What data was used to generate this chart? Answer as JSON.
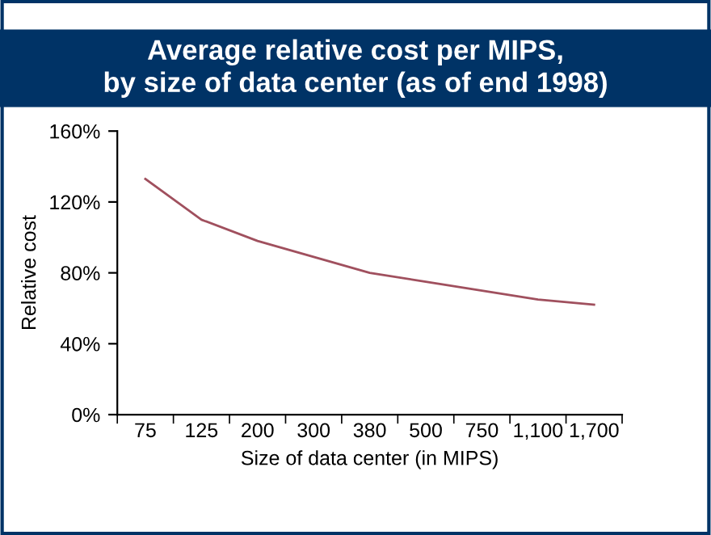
{
  "chart_data": {
    "type": "line",
    "title": "Average relative cost per MIPS,\nby size of data center (as of end 1998)",
    "xlabel": "Size of data center (in MIPS)",
    "ylabel": "Relative cost",
    "categories": [
      "75",
      "125",
      "200",
      "300",
      "380",
      "500",
      "750",
      "1,100",
      "1,700"
    ],
    "series": [
      {
        "color": "#a0505e",
        "values": [
          133,
          110,
          98,
          89,
          80,
          75,
          70,
          65,
          62
        ]
      }
    ],
    "ylim": [
      0,
      160
    ],
    "yticks": [
      {
        "value": 0,
        "label": "0%"
      },
      {
        "value": 40,
        "label": "40%"
      },
      {
        "value": 80,
        "label": "80%"
      },
      {
        "value": 120,
        "label": "120%"
      },
      {
        "value": 160,
        "label": "160%"
      }
    ],
    "grid": false,
    "legend": false
  }
}
